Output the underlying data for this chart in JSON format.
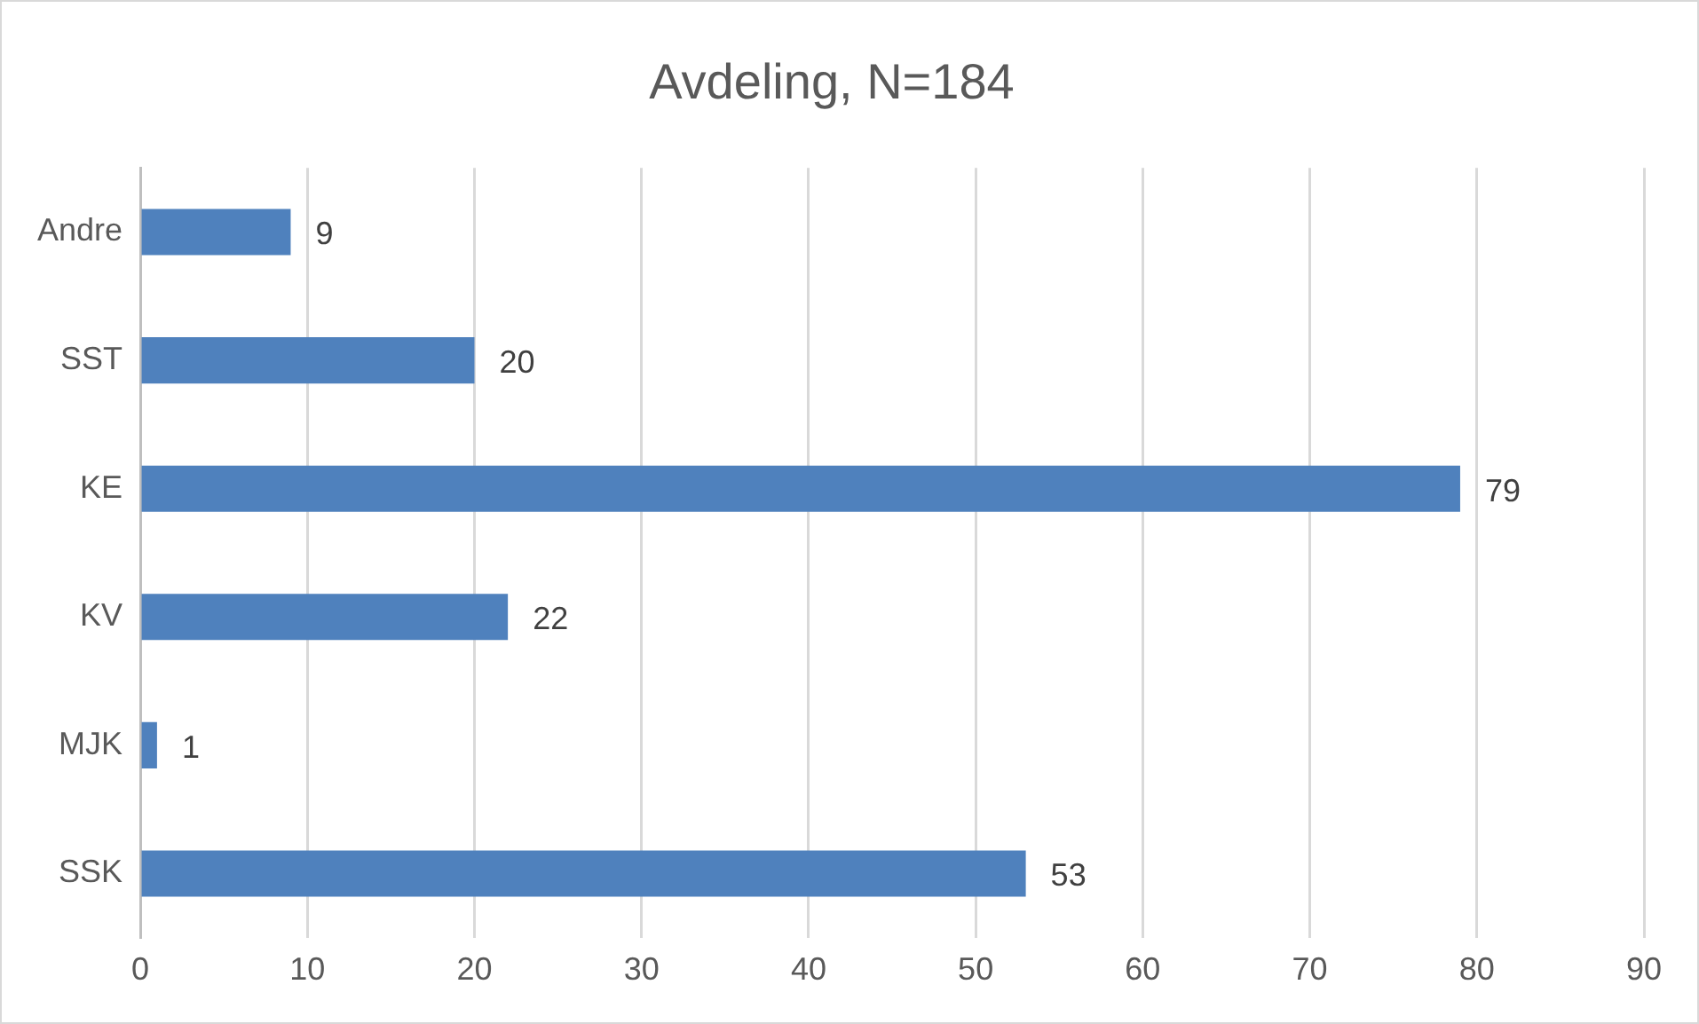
{
  "chart_data": {
    "type": "bar",
    "orientation": "horizontal",
    "title": "Avdeling, N=184",
    "categories": [
      "Andre",
      "SST",
      "KE",
      "KV",
      "MJK",
      "SSK"
    ],
    "values": [
      9,
      20,
      79,
      22,
      1,
      53
    ],
    "color": "#4f81bd",
    "xlim": [
      0,
      90
    ],
    "xticks": [
      0,
      10,
      20,
      30,
      40,
      50,
      60,
      70,
      80,
      90
    ],
    "grid": "x",
    "data_labels": true,
    "legend": false
  }
}
